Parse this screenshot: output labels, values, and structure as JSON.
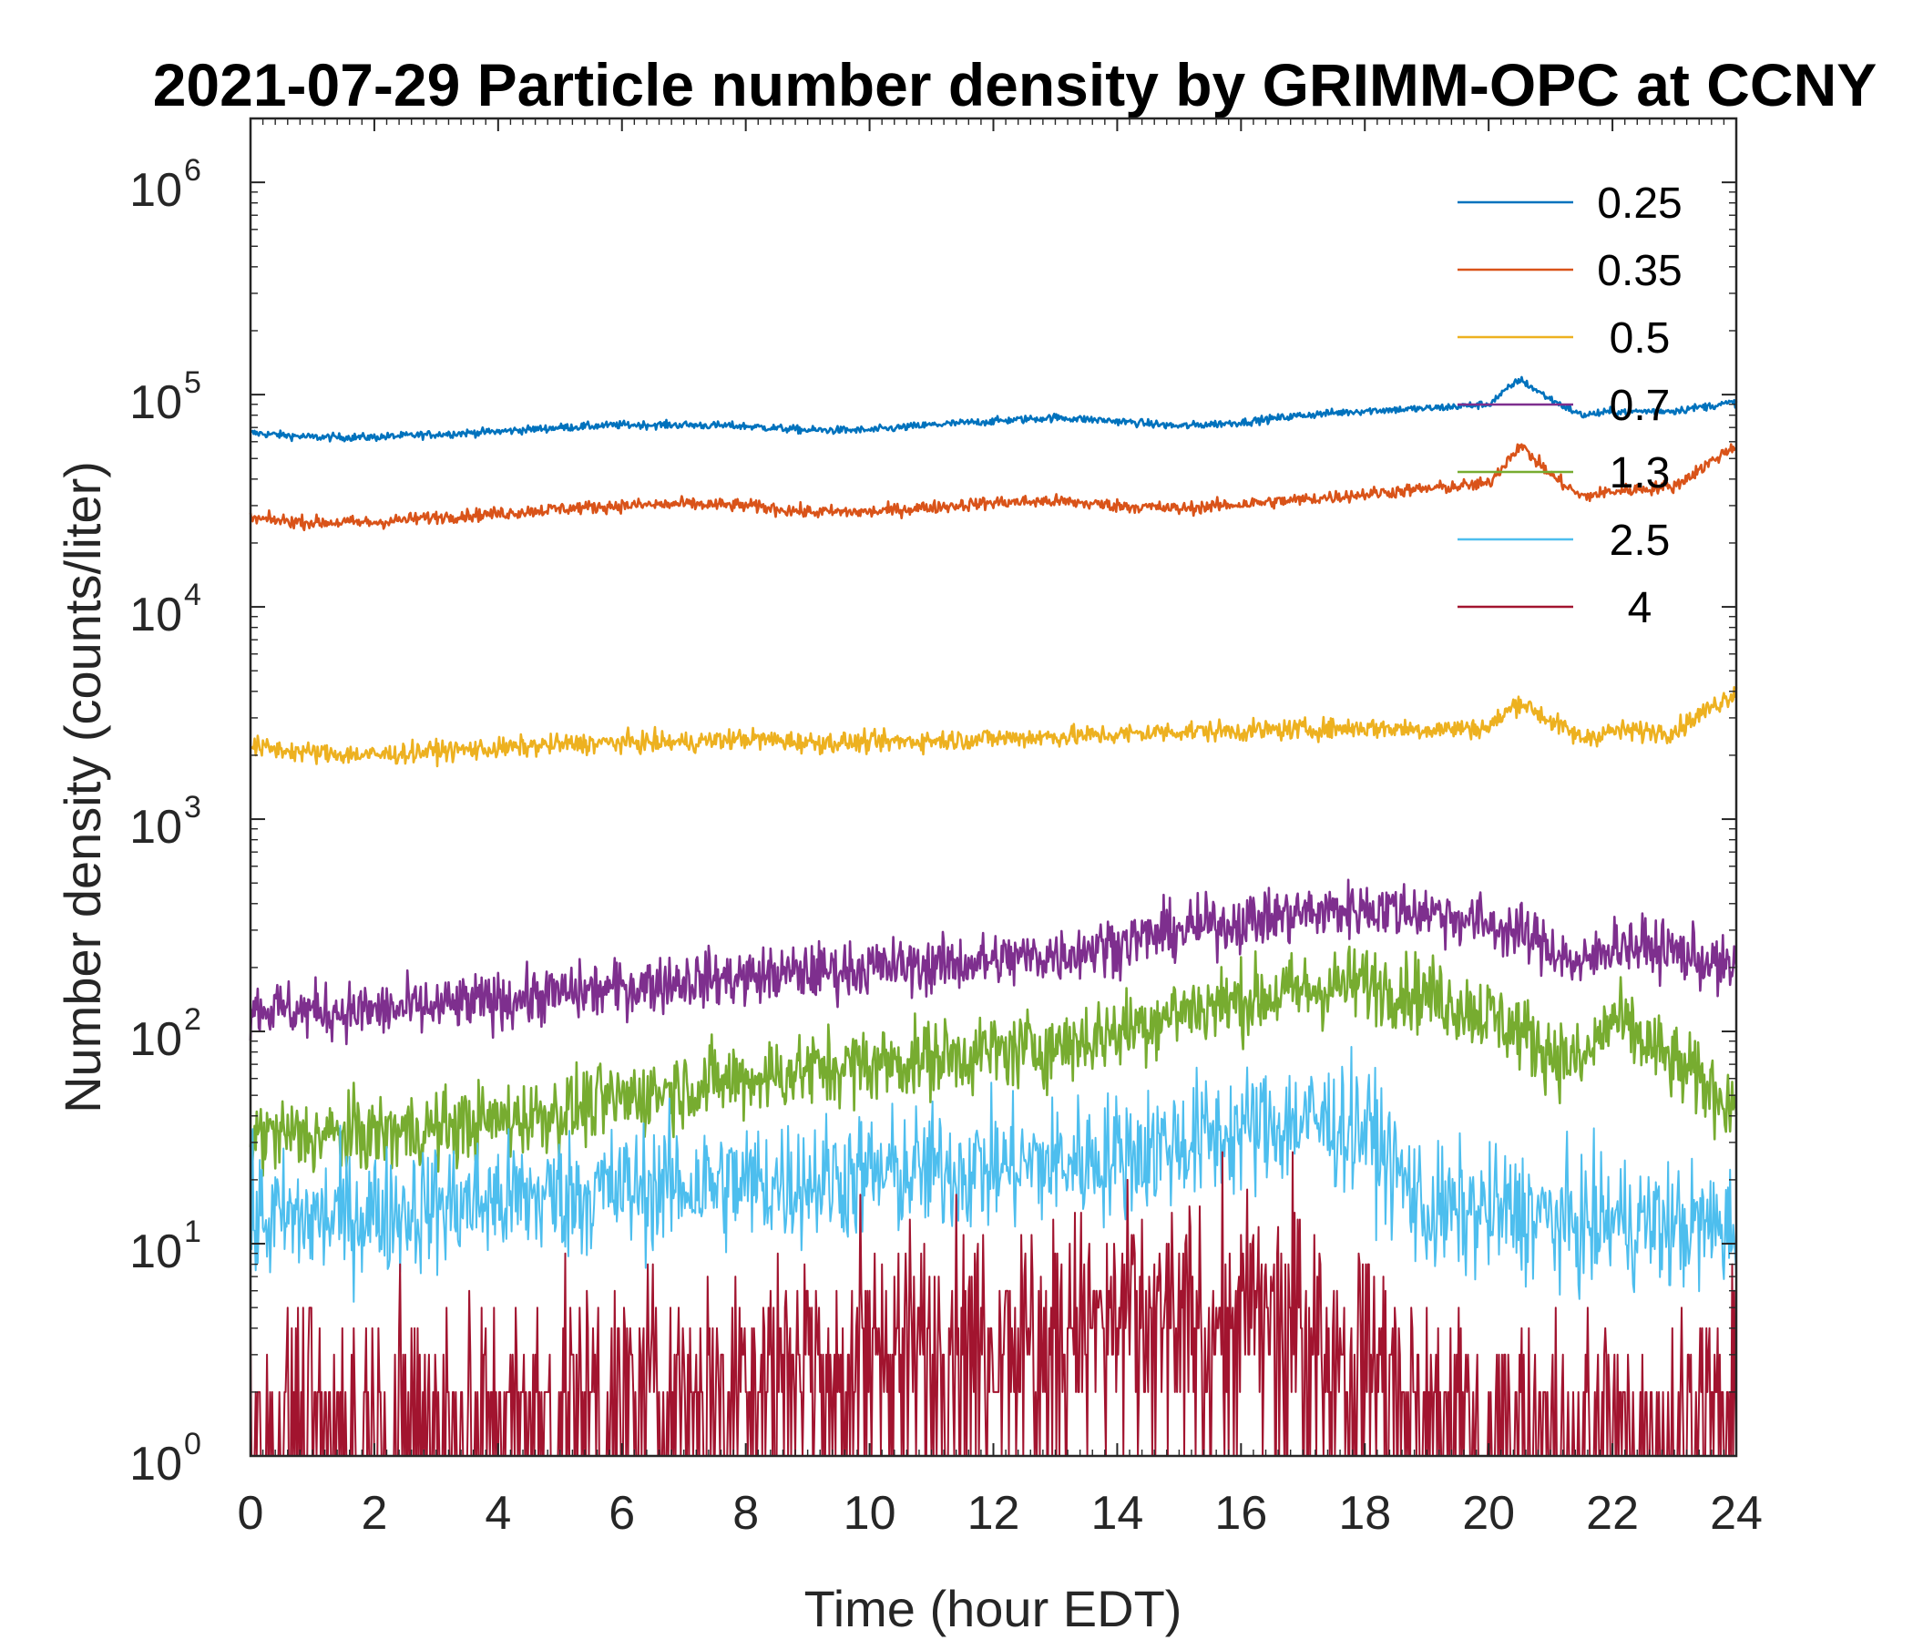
{
  "chart_data": {
    "type": "line",
    "title": "2021-07-29 Particle number density by GRIMM-OPC at CCNY",
    "xlabel": "Time (hour EDT)",
    "ylabel": "Number density (counts/liter)",
    "xlim": [
      0,
      24
    ],
    "ylim": [
      1,
      2000000
    ],
    "yscale": "log",
    "xticks": [
      0,
      2,
      4,
      6,
      8,
      10,
      12,
      14,
      16,
      18,
      20,
      22,
      24
    ],
    "yticks": [
      {
        "base": "10",
        "exp": "0"
      },
      {
        "base": "10",
        "exp": "1"
      },
      {
        "base": "10",
        "exp": "2"
      },
      {
        "base": "10",
        "exp": "3"
      },
      {
        "base": "10",
        "exp": "4"
      },
      {
        "base": "10",
        "exp": "5"
      },
      {
        "base": "10",
        "exp": "6"
      }
    ],
    "grid": false,
    "legend_position": "top-right",
    "x": [
      0,
      1,
      2,
      3,
      4,
      5,
      6,
      7,
      8,
      9,
      10,
      11,
      12,
      13,
      14,
      15,
      16,
      17,
      18,
      19,
      20,
      20.5,
      21,
      21.5,
      22,
      23,
      24
    ],
    "series": [
      {
        "name": "0.25",
        "color": "#0072BD",
        "noise": 0.03,
        "values": [
          66000,
          63000,
          63000,
          65000,
          67000,
          70000,
          72000,
          72000,
          71000,
          68000,
          68000,
          72000,
          75000,
          78000,
          75000,
          71000,
          74000,
          80000,
          84000,
          86000,
          90000,
          118000,
          95000,
          80000,
          83000,
          84000,
          92000
        ]
      },
      {
        "name": "0.35",
        "color": "#D95319",
        "noise": 0.05,
        "values": [
          26000,
          25000,
          25000,
          26500,
          27500,
          29000,
          30000,
          30500,
          30000,
          28000,
          28000,
          29500,
          31000,
          31500,
          30000,
          29000,
          30500,
          32000,
          34000,
          36000,
          38000,
          58000,
          42000,
          33000,
          35000,
          37000,
          58000
        ]
      },
      {
        "name": "0.5",
        "color": "#EDB120",
        "noise": 0.08,
        "values": [
          2200,
          2050,
          2000,
          2100,
          2150,
          2250,
          2300,
          2300,
          2400,
          2300,
          2300,
          2350,
          2400,
          2450,
          2500,
          2600,
          2600,
          2650,
          2700,
          2650,
          2700,
          3600,
          2900,
          2400,
          2600,
          2600,
          4000
        ]
      },
      {
        "name": "0.7",
        "color": "#7E2F8E",
        "noise": 0.22,
        "values": [
          130,
          125,
          125,
          130,
          140,
          150,
          160,
          175,
          180,
          190,
          200,
          205,
          215,
          230,
          260,
          300,
          330,
          360,
          380,
          370,
          320,
          290,
          250,
          200,
          260,
          240,
          190
        ]
      },
      {
        "name": "1.3",
        "color": "#77AC30",
        "noise": 0.3,
        "values": [
          33,
          32,
          33,
          35,
          38,
          42,
          48,
          55,
          60,
          66,
          70,
          75,
          80,
          85,
          100,
          125,
          140,
          155,
          170,
          150,
          120,
          100,
          80,
          70,
          115,
          70,
          45
        ]
      },
      {
        "name": "2.5",
        "color": "#4DBEEE",
        "noise": 0.5,
        "values": [
          13,
          13,
          14,
          15,
          16,
          17,
          18,
          19,
          19,
          20,
          21,
          22,
          23,
          24,
          26,
          30,
          34,
          38,
          35,
          14,
          14,
          14,
          13,
          12,
          13,
          12,
          12
        ]
      },
      {
        "name": "4",
        "color": "#A2142F",
        "noise": 0.9,
        "floor": 1,
        "values": [
          1.5,
          1.6,
          1.5,
          1.6,
          1.7,
          1.8,
          2.0,
          2.2,
          2.8,
          3.2,
          3.5,
          3.8,
          3.8,
          4.0,
          4.2,
          4.5,
          4.6,
          4.5,
          3.0,
          1.8,
          1.5,
          1.4,
          1.3,
          1.3,
          1.4,
          1.4,
          1.5
        ]
      }
    ]
  }
}
